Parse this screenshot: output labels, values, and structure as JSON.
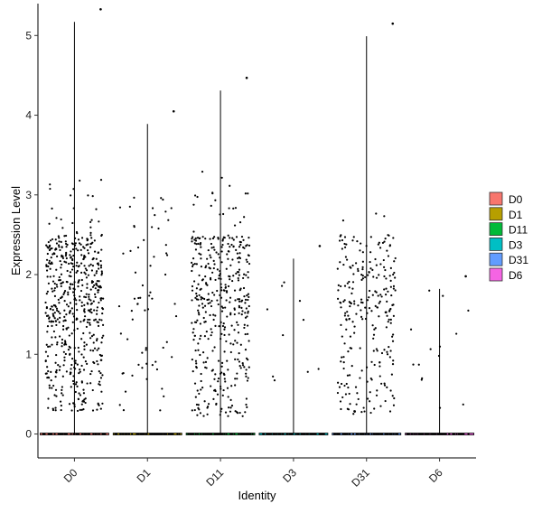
{
  "chart_data": {
    "type": "violin",
    "title": "",
    "xlabel": "Identity",
    "ylabel": "Expression Level",
    "ylim": [
      -0.3,
      5.4
    ],
    "yticks": [
      0,
      1,
      2,
      3,
      4,
      5
    ],
    "grid": false,
    "legend_position": "right",
    "categories": [
      "D0",
      "D1",
      "D11",
      "D3",
      "D31",
      "D6"
    ],
    "colors": {
      "D0": "#F8766D",
      "D1": "#B79F00",
      "D11": "#00BA38",
      "D3": "#00BFC4",
      "D31": "#619CFF",
      "D6": "#F564E3"
    },
    "series": [
      {
        "category": "D0",
        "max": 5.17,
        "n_nonzero": 560,
        "low": 0.28,
        "high": 3.3
      },
      {
        "category": "D1",
        "max": 3.89,
        "n_nonzero": 65,
        "low": 0.25,
        "high": 3.0
      },
      {
        "category": "D11",
        "max": 4.31,
        "n_nonzero": 420,
        "low": 0.22,
        "high": 3.3
      },
      {
        "category": "D3",
        "max": 2.2,
        "n_nonzero": 10,
        "low": 0.2,
        "high": 2.2
      },
      {
        "category": "D31",
        "max": 4.99,
        "n_nonzero": 260,
        "low": 0.25,
        "high": 2.9
      },
      {
        "category": "D6",
        "max": 1.82,
        "n_nonzero": 14,
        "low": 0.3,
        "high": 1.82
      }
    ]
  }
}
